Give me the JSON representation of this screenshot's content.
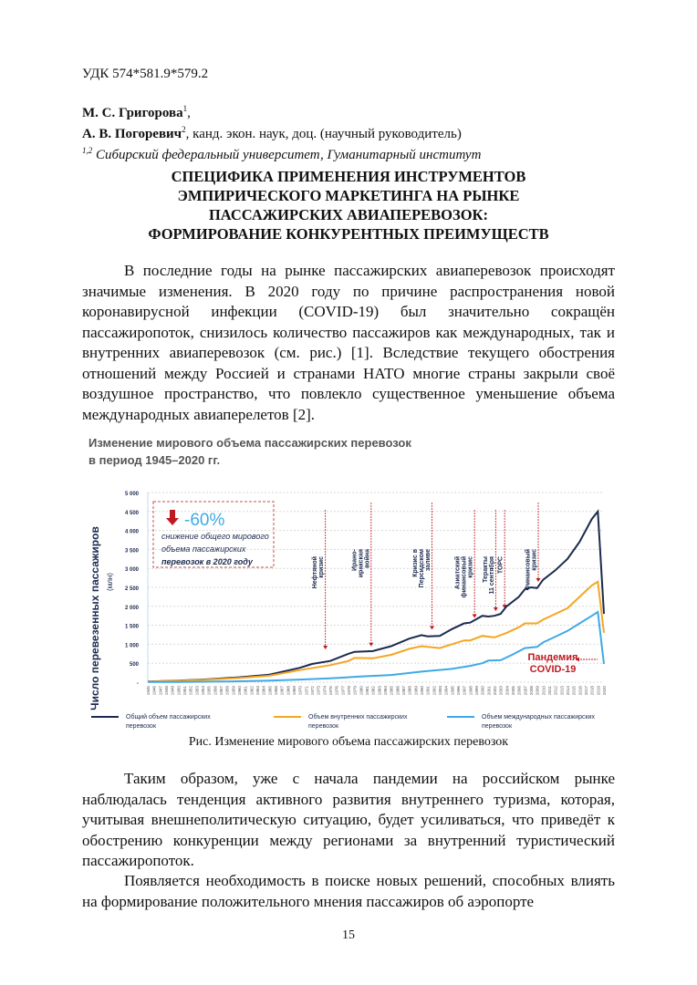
{
  "udk": "УДК 574*581.9*579.2",
  "authors": [
    {
      "name": "М. С. Григорова",
      "sup": "1",
      "suffix": ","
    },
    {
      "name": "А. В. Погоревич",
      "sup": "2",
      "suffix": ", канд. экон. наук, доц. (научный руководитель)"
    }
  ],
  "affiliation": {
    "sup": "1,2",
    "text": "Сибирский федеральный университет, Гуманитарный институт"
  },
  "title_lines": [
    "СПЕЦИФИКА ПРИМЕНЕНИЯ ИНСТРУМЕНТОВ",
    "ЭМПИРИЧЕСКОГО МАРКЕТИНГА НА РЫНКЕ",
    "ПАССАЖИРСКИХ АВИАПЕРЕВОЗОК:",
    "ФОРМИРОВАНИЕ КОНКУРЕНТНЫХ ПРЕИМУЩЕСТВ"
  ],
  "paragraphs": [
    "В последние годы на рынке пассажирских авиаперевозок происходят значимые изменения. В 2020 году по причине распространения новой коронавирусной инфекции (COVID-19) был значительно сокращён пассажиропоток, снизилось количество пассажиров как международных, так и внутренних авиаперевозок (см. рис.) [1]. Вследствие текущего обострения отношений между Россией и странами НАТО многие страны закрыли своё воздушное пространство, что повлекло существенное уменьшение объема международных авиаперелетов [2].",
    "Таким образом, уже с начала пандемии на российском рынке наблюдалась тенденция активного развития внутреннего туризма, которая, учитывая внешнеполитическую ситуацию, будет усиливаться, что приведёт к обострению конкуренции между регионами за внутренний туристический пассажиропоток.",
    "Появляется необходимость в поиске новых решений, способных влиять на формирование положительного мнения пассажиров об аэропорте"
  ],
  "caption": "Рис. Изменение мирового объема пассажирских перевозок",
  "page_number": "15",
  "chart_data": {
    "type": "line",
    "title": "Изменение мирового объема пассажирских перевозок",
    "subtitle": "в период 1945–2020 гг.",
    "ylabel": "Число перевезенных пассажиров",
    "ylabel_unit": "(млн)",
    "xlabel": "",
    "xlim": [
      1945,
      2020
    ],
    "ylim": [
      0,
      5000
    ],
    "yticks": [
      0,
      500,
      1000,
      1500,
      2000,
      2500,
      3000,
      3500,
      4000,
      4500,
      5000
    ],
    "ytick_labels": [
      "-",
      "500",
      "1 000",
      "1 500",
      "2 000",
      "2 500",
      "3 000",
      "3 500",
      "4 000",
      "4 500",
      "5 000"
    ],
    "grid": true,
    "legend_position": "bottom",
    "series": [
      {
        "name": "Общий объем пассажирских перевозок",
        "color": "#1b2a4e",
        "points": [
          [
            1945,
            20
          ],
          [
            1950,
            40
          ],
          [
            1955,
            80
          ],
          [
            1960,
            130
          ],
          [
            1965,
            200
          ],
          [
            1970,
            380
          ],
          [
            1972,
            480
          ],
          [
            1975,
            560
          ],
          [
            1978,
            750
          ],
          [
            1979,
            800
          ],
          [
            1982,
            820
          ],
          [
            1985,
            950
          ],
          [
            1988,
            1150
          ],
          [
            1990,
            1240
          ],
          [
            1991,
            1210
          ],
          [
            1993,
            1220
          ],
          [
            1995,
            1400
          ],
          [
            1997,
            1550
          ],
          [
            1998,
            1570
          ],
          [
            2000,
            1750
          ],
          [
            2001,
            1730
          ],
          [
            2002,
            1750
          ],
          [
            2003,
            1800
          ],
          [
            2004,
            2000
          ],
          [
            2006,
            2250
          ],
          [
            2007,
            2450
          ],
          [
            2008,
            2500
          ],
          [
            2009,
            2480
          ],
          [
            2010,
            2700
          ],
          [
            2012,
            2950
          ],
          [
            2014,
            3250
          ],
          [
            2016,
            3700
          ],
          [
            2017,
            4000
          ],
          [
            2018,
            4300
          ],
          [
            2019,
            4500
          ],
          [
            2020,
            1800
          ]
        ]
      },
      {
        "name": "Объем внутренних пассажирских перевозок",
        "color": "#f5a623",
        "points": [
          [
            1945,
            15
          ],
          [
            1950,
            35
          ],
          [
            1955,
            70
          ],
          [
            1960,
            110
          ],
          [
            1965,
            170
          ],
          [
            1970,
            320
          ],
          [
            1975,
            450
          ],
          [
            1978,
            560
          ],
          [
            1979,
            640
          ],
          [
            1982,
            630
          ],
          [
            1985,
            720
          ],
          [
            1988,
            880
          ],
          [
            1990,
            950
          ],
          [
            1993,
            900
          ],
          [
            1995,
            1000
          ],
          [
            1997,
            1100
          ],
          [
            1998,
            1100
          ],
          [
            2000,
            1220
          ],
          [
            2002,
            1180
          ],
          [
            2004,
            1300
          ],
          [
            2006,
            1450
          ],
          [
            2007,
            1550
          ],
          [
            2009,
            1550
          ],
          [
            2010,
            1650
          ],
          [
            2012,
            1800
          ],
          [
            2014,
            1950
          ],
          [
            2016,
            2250
          ],
          [
            2018,
            2550
          ],
          [
            2019,
            2650
          ],
          [
            2020,
            1300
          ]
        ]
      },
      {
        "name": "Объем международных пассажирских перевозок",
        "color": "#3fa9e6",
        "points": [
          [
            1945,
            5
          ],
          [
            1950,
            8
          ],
          [
            1955,
            15
          ],
          [
            1960,
            25
          ],
          [
            1965,
            40
          ],
          [
            1970,
            70
          ],
          [
            1975,
            100
          ],
          [
            1980,
            150
          ],
          [
            1985,
            190
          ],
          [
            1990,
            280
          ],
          [
            1995,
            350
          ],
          [
            1998,
            430
          ],
          [
            2000,
            500
          ],
          [
            2001,
            570
          ],
          [
            2003,
            580
          ],
          [
            2005,
            730
          ],
          [
            2007,
            900
          ],
          [
            2009,
            930
          ],
          [
            2010,
            1050
          ],
          [
            2012,
            1200
          ],
          [
            2014,
            1350
          ],
          [
            2016,
            1550
          ],
          [
            2018,
            1750
          ],
          [
            2019,
            1850
          ],
          [
            2020,
            480
          ]
        ]
      }
    ],
    "annotations": [
      {
        "year": 1973,
        "lines": [
          "Нефтяной",
          "кризис"
        ]
      },
      {
        "year": 1980,
        "lines": [
          "Ирано-",
          "иракская",
          "война"
        ]
      },
      {
        "year": 1990,
        "lines": [
          "Кризис в",
          "Персидском",
          "заливе"
        ]
      },
      {
        "year": 1997,
        "lines": [
          "Азиатский",
          "финансовый",
          "кризис"
        ]
      },
      {
        "year": 2001,
        "lines": [
          "Теракты",
          "11 сентября"
        ]
      },
      {
        "year": 2003,
        "lines": [
          "ТОРС"
        ]
      },
      {
        "year": 2008,
        "lines": [
          "Финансовый",
          "кризис"
        ]
      }
    ],
    "callout": {
      "value": "-60%",
      "text_lines": [
        "снижение общего мирового",
        "объема пассажирских",
        "перевозок в 2020 году"
      ]
    },
    "pandemic_label": [
      "Пандемия",
      "COVID-19"
    ]
  }
}
